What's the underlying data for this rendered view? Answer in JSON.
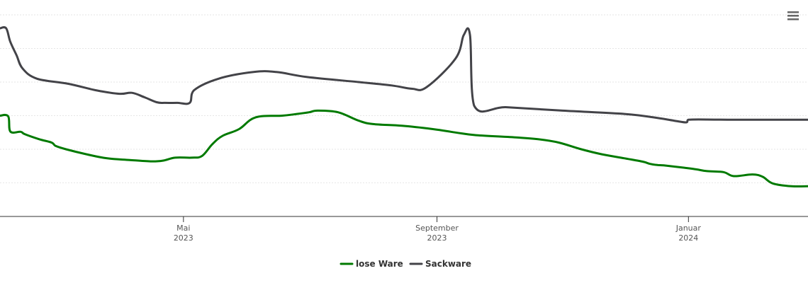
{
  "menu": {
    "icon": "hamburger-menu-icon"
  },
  "chart_data": {
    "type": "line",
    "title": "",
    "xlabel": "",
    "ylabel": "",
    "x_axis": {
      "type": "datetime",
      "range": [
        "2023-02-01",
        "2024-02-28"
      ],
      "ticks": [
        {
          "date": "2023-05-01",
          "month": "Mai",
          "year": "2023"
        },
        {
          "date": "2023-09-01",
          "month": "September",
          "year": "2023"
        },
        {
          "date": "2024-01-01",
          "month": "Januar",
          "year": "2024"
        }
      ]
    },
    "y_axis": {
      "range": [
        0,
        6
      ],
      "gridlines": [
        1,
        2,
        3,
        4,
        5,
        6
      ],
      "tick_labels_visible": false
    },
    "grid": true,
    "legend": "bottom-center",
    "series": [
      {
        "name": "lose Ware",
        "color": "#007a00",
        "points": [
          [
            "2023-02-01",
            3.0
          ],
          [
            "2023-02-05",
            2.98
          ],
          [
            "2023-02-06",
            2.53
          ],
          [
            "2023-02-11",
            2.52
          ],
          [
            "2023-02-13",
            2.45
          ],
          [
            "2023-02-20",
            2.3
          ],
          [
            "2023-02-26",
            2.2
          ],
          [
            "2023-02-28",
            2.1
          ],
          [
            "2023-03-05",
            2.0
          ],
          [
            "2023-03-15",
            1.85
          ],
          [
            "2023-03-25",
            1.73
          ],
          [
            "2023-04-05",
            1.68
          ],
          [
            "2023-04-15",
            1.64
          ],
          [
            "2023-04-21",
            1.66
          ],
          [
            "2023-04-27",
            1.75
          ],
          [
            "2023-05-05",
            1.75
          ],
          [
            "2023-05-10",
            1.8
          ],
          [
            "2023-05-15",
            2.15
          ],
          [
            "2023-05-20",
            2.4
          ],
          [
            "2023-05-28",
            2.6
          ],
          [
            "2023-06-05",
            2.95
          ],
          [
            "2023-06-18",
            3.0
          ],
          [
            "2023-06-25",
            3.05
          ],
          [
            "2023-07-01",
            3.1
          ],
          [
            "2023-07-05",
            3.15
          ],
          [
            "2023-07-15",
            3.1
          ],
          [
            "2023-07-25",
            2.85
          ],
          [
            "2023-08-01",
            2.75
          ],
          [
            "2023-08-15",
            2.7
          ],
          [
            "2023-08-30",
            2.6
          ],
          [
            "2023-09-10",
            2.5
          ],
          [
            "2023-09-20",
            2.42
          ],
          [
            "2023-10-10",
            2.35
          ],
          [
            "2023-10-20",
            2.3
          ],
          [
            "2023-10-30",
            2.2
          ],
          [
            "2023-11-10",
            2.0
          ],
          [
            "2023-11-20",
            1.85
          ],
          [
            "2023-12-01",
            1.73
          ],
          [
            "2023-12-10",
            1.63
          ],
          [
            "2023-12-13",
            1.57
          ],
          [
            "2023-12-17",
            1.53
          ],
          [
            "2023-12-20",
            1.52
          ],
          [
            "2023-12-30",
            1.45
          ],
          [
            "2024-01-05",
            1.4
          ],
          [
            "2024-01-10",
            1.35
          ],
          [
            "2024-01-18",
            1.32
          ],
          [
            "2024-01-23",
            1.2
          ],
          [
            "2024-02-01",
            1.25
          ],
          [
            "2024-02-06",
            1.18
          ],
          [
            "2024-02-11",
            0.98
          ],
          [
            "2024-02-20",
            0.9
          ],
          [
            "2024-02-28",
            0.9
          ]
        ]
      },
      {
        "name": "Sackware",
        "color": "#434348",
        "points": [
          [
            "2023-02-01",
            5.6
          ],
          [
            "2023-02-04",
            5.6
          ],
          [
            "2023-02-06",
            5.2
          ],
          [
            "2023-02-09",
            4.8
          ],
          [
            "2023-02-12",
            4.4
          ],
          [
            "2023-02-19",
            4.1
          ],
          [
            "2023-03-06",
            3.95
          ],
          [
            "2023-03-20",
            3.75
          ],
          [
            "2023-03-31",
            3.65
          ],
          [
            "2023-04-06",
            3.68
          ],
          [
            "2023-04-12",
            3.55
          ],
          [
            "2023-04-18",
            3.4
          ],
          [
            "2023-04-22",
            3.38
          ],
          [
            "2023-04-28",
            3.38
          ],
          [
            "2023-05-04",
            3.38
          ],
          [
            "2023-05-06",
            3.75
          ],
          [
            "2023-05-18",
            4.1
          ],
          [
            "2023-06-04",
            4.3
          ],
          [
            "2023-06-15",
            4.3
          ],
          [
            "2023-06-30",
            4.15
          ],
          [
            "2023-07-25",
            4.0
          ],
          [
            "2023-08-10",
            3.9
          ],
          [
            "2023-08-20",
            3.8
          ],
          [
            "2023-08-27",
            3.85
          ],
          [
            "2023-09-10",
            4.7
          ],
          [
            "2023-09-14",
            5.4
          ],
          [
            "2023-09-17",
            5.4
          ],
          [
            "2023-09-19",
            3.3
          ],
          [
            "2023-10-05",
            3.25
          ],
          [
            "2023-11-01",
            3.15
          ],
          [
            "2023-12-01",
            3.05
          ],
          [
            "2023-12-15",
            2.95
          ],
          [
            "2023-12-25",
            2.85
          ],
          [
            "2023-12-31",
            2.8
          ],
          [
            "2024-01-01",
            2.88
          ],
          [
            "2024-01-20",
            2.88
          ],
          [
            "2024-02-28",
            2.88
          ]
        ]
      }
    ]
  }
}
